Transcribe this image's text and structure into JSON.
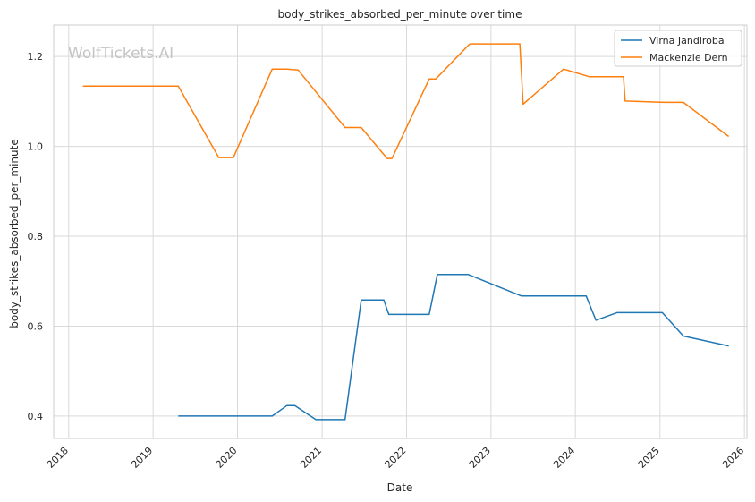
{
  "chart_data": {
    "type": "line",
    "title": "body_strikes_absorbed_per_minute over time",
    "xlabel": "Date",
    "ylabel": "body_strikes_absorbed_per_minute",
    "watermark": "WolfTickets.AI",
    "xlim": [
      "2017-10-28",
      "2026-01-12"
    ],
    "ylim": [
      0.35,
      1.27
    ],
    "x_ticks": [
      "2018",
      "2019",
      "2020",
      "2021",
      "2022",
      "2023",
      "2024",
      "2025",
      "2026"
    ],
    "y_ticks": [
      0.4,
      0.6,
      0.8,
      1.0,
      1.2
    ],
    "y_tick_labels": [
      "0.4",
      "0.6",
      "0.8",
      "1.0",
      "1.2"
    ],
    "grid": true,
    "legend_position": "top-right",
    "series": [
      {
        "name": "Virna Jandiroba",
        "color": "#1f77b4",
        "points": [
          [
            "2019-04-20",
            0.4
          ],
          [
            "2020-05-30",
            0.4
          ],
          [
            "2020-08-01",
            0.423
          ],
          [
            "2020-09-05",
            0.423
          ],
          [
            "2020-12-05",
            0.392
          ],
          [
            "2021-04-10",
            0.392
          ],
          [
            "2021-06-19",
            0.658
          ],
          [
            "2021-09-25",
            0.658
          ],
          [
            "2021-10-16",
            0.626
          ],
          [
            "2022-04-09",
            0.626
          ],
          [
            "2022-05-14",
            0.715
          ],
          [
            "2022-09-24",
            0.715
          ],
          [
            "2023-05-13",
            0.667
          ],
          [
            "2024-02-17",
            0.667
          ],
          [
            "2024-03-30",
            0.613
          ],
          [
            "2024-06-29",
            0.63
          ],
          [
            "2025-01-11",
            0.63
          ],
          [
            "2025-04-12",
            0.578
          ],
          [
            "2025-10-25",
            0.556
          ]
        ]
      },
      {
        "name": "Mackenzie Dern",
        "color": "#ff7f0e",
        "points": [
          [
            "2018-03-03",
            1.134
          ],
          [
            "2019-04-20",
            1.134
          ],
          [
            "2019-10-12",
            0.975
          ],
          [
            "2019-12-14",
            0.975
          ],
          [
            "2020-05-30",
            1.172
          ],
          [
            "2020-08-01",
            1.172
          ],
          [
            "2020-09-19",
            1.17
          ],
          [
            "2021-04-10",
            1.042
          ],
          [
            "2021-06-19",
            1.042
          ],
          [
            "2021-10-09",
            0.973
          ],
          [
            "2021-10-30",
            0.973
          ],
          [
            "2022-04-09",
            1.15
          ],
          [
            "2022-05-07",
            1.15
          ],
          [
            "2022-10-01",
            1.228
          ],
          [
            "2023-05-06",
            1.228
          ],
          [
            "2023-05-20",
            1.094
          ],
          [
            "2023-11-11",
            1.172
          ],
          [
            "2024-03-02",
            1.155
          ],
          [
            "2024-07-27",
            1.155
          ],
          [
            "2024-08-03",
            1.101
          ],
          [
            "2025-01-18",
            1.098
          ],
          [
            "2025-04-12",
            1.098
          ],
          [
            "2025-10-25",
            1.022
          ]
        ]
      }
    ]
  }
}
